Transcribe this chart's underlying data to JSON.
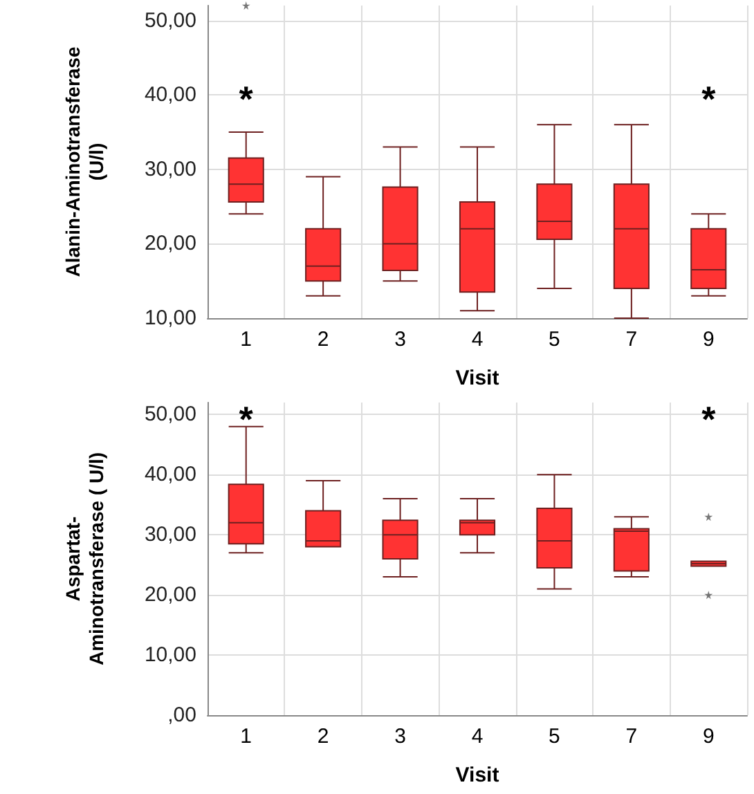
{
  "chart_data": [
    {
      "type": "box",
      "xlabel": "Visit",
      "ylabel": "Alanin-Aminotransferase\n(U/l)",
      "categories": [
        "1",
        "2",
        "3",
        "4",
        "5",
        "7",
        "9"
      ],
      "color": "#ff3333",
      "grid": true,
      "ylim": [
        10,
        52
      ],
      "yticks": [
        {
          "value": 10,
          "label": "10,00"
        },
        {
          "value": 20,
          "label": "20,00"
        },
        {
          "value": 30,
          "label": "30,00"
        },
        {
          "value": 40,
          "label": "40,00"
        },
        {
          "value": 50,
          "label": "50,00"
        }
      ],
      "boxes": [
        {
          "low": 24,
          "q1": 25.6,
          "median": 28,
          "q3": 31.5,
          "high": 35,
          "outliers": [
            52
          ]
        },
        {
          "low": 13,
          "q1": 15,
          "median": 17,
          "q3": 22,
          "high": 29
        },
        {
          "low": 15,
          "q1": 16.4,
          "median": 20,
          "q3": 27.6,
          "high": 33
        },
        {
          "low": 11,
          "q1": 13.5,
          "median": 22,
          "q3": 25.6,
          "high": 33
        },
        {
          "low": 14,
          "q1": 20.6,
          "median": 23,
          "q3": 28,
          "high": 36
        },
        {
          "low": 10,
          "q1": 14,
          "median": 22,
          "q3": 28,
          "high": 36
        },
        {
          "low": 13,
          "q1": 14,
          "median": 16.5,
          "q3": 22,
          "high": 24
        }
      ],
      "annotations": [
        "*",
        "*"
      ]
    },
    {
      "type": "box",
      "xlabel": "Visit",
      "ylabel": "Aspartat-\nAminotransferase ( U/l)",
      "categories": [
        "1",
        "2",
        "3",
        "4",
        "5",
        "7",
        "9"
      ],
      "color": "#ff3333",
      "grid": true,
      "ylim": [
        0,
        52
      ],
      "yticks": [
        {
          "value": 0,
          "label": ",00"
        },
        {
          "value": 10,
          "label": "10,00"
        },
        {
          "value": 20,
          "label": "20,00"
        },
        {
          "value": 30,
          "label": "30,00"
        },
        {
          "value": 40,
          "label": "40,00"
        },
        {
          "value": 50,
          "label": "50,00"
        }
      ],
      "boxes": [
        {
          "low": 27,
          "q1": 28.5,
          "median": 32,
          "q3": 38.4,
          "high": 48
        },
        {
          "low": 28,
          "q1": 28,
          "median": 29,
          "q3": 34,
          "high": 39
        },
        {
          "low": 23,
          "q1": 26,
          "median": 30,
          "q3": 32.4,
          "high": 36
        },
        {
          "low": 27,
          "q1": 30,
          "median": 32,
          "q3": 32.4,
          "high": 36
        },
        {
          "low": 21,
          "q1": 24.5,
          "median": 29,
          "q3": 34.4,
          "high": 40
        },
        {
          "low": 23,
          "q1": 24,
          "median": 30.6,
          "q3": 31,
          "high": 33
        },
        {
          "low": 24.8,
          "q1": 24.8,
          "median": 25.2,
          "q3": 25.6,
          "high": 25.6,
          "outliers": [
            33,
            20
          ]
        }
      ],
      "annotations": [
        "*",
        "*"
      ]
    }
  ]
}
